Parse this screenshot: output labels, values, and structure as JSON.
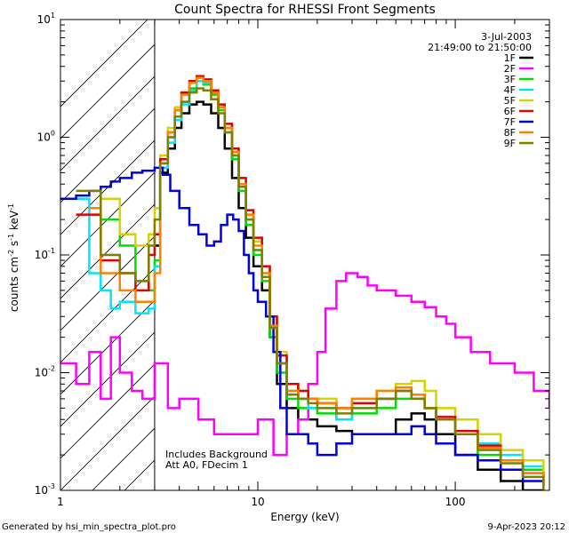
{
  "chart_data": {
    "type": "line",
    "title": "Count Spectra for RHESSI Front Segments",
    "date": "3-Jul-2003",
    "time_range": "21:49:00 to 21:50:00",
    "xlabel": "Energy (keV)",
    "ylabel_main": "counts cm",
    "ylabel_exp1": "-2",
    "ylabel_mid": " s",
    "ylabel_exp2": "-1",
    "ylabel_end": " keV",
    "ylabel_exp3": "-1",
    "xscale": "log",
    "yscale": "log",
    "xlim": [
      1,
      300
    ],
    "ylim": [
      0.001,
      10
    ],
    "x_ticks": [
      {
        "v": 1,
        "label": "1"
      },
      {
        "v": 10,
        "label": "10"
      },
      {
        "v": 100,
        "label": "100"
      }
    ],
    "y_ticks": [
      {
        "v": 0.001,
        "base": "10",
        "exp": "-3"
      },
      {
        "v": 0.01,
        "base": "10",
        "exp": "-2"
      },
      {
        "v": 0.1,
        "base": "10",
        "exp": "-1"
      },
      {
        "v": 1,
        "base": "10",
        "exp": "0"
      },
      {
        "v": 10,
        "base": "10",
        "exp": "1"
      }
    ],
    "hatched_region_x": [
      1,
      3
    ],
    "annotations": {
      "line1": "Includes Background",
      "line2": "Att A0, FDecim 1"
    },
    "footer_left": "Generated by hsi_min_spectra_plot.pro",
    "footer_right": "9-Apr-2023 20:12",
    "legend_position": "top-right",
    "series": [
      {
        "name": "1F",
        "color": "#000000",
        "x": [
          3.0,
          3.2,
          3.5,
          3.8,
          4.1,
          4.5,
          4.9,
          5.3,
          5.8,
          6.3,
          6.8,
          7.4,
          8.0,
          8.7,
          9.5,
          10.5,
          11.5,
          12.5,
          14,
          16,
          18,
          20,
          25,
          30,
          40,
          50,
          60,
          70,
          80,
          100,
          130,
          170,
          220,
          280
        ],
        "y": [
          0.12,
          0.5,
          0.8,
          1.2,
          1.6,
          1.9,
          2.0,
          1.9,
          1.6,
          1.2,
          0.8,
          0.45,
          0.25,
          0.14,
          0.08,
          0.05,
          0.02,
          0.008,
          0.005,
          0.004,
          0.004,
          0.0035,
          0.0032,
          0.003,
          0.003,
          0.004,
          0.0045,
          0.004,
          0.003,
          0.002,
          0.0015,
          0.0012,
          0.001,
          0.001
        ]
      },
      {
        "name": "2F",
        "color": "#ff00ff",
        "x": [
          1.0,
          1.2,
          1.4,
          1.6,
          1.8,
          2.0,
          2.3,
          2.6,
          3.0,
          3.5,
          4.0,
          5.0,
          6.0,
          8.0,
          10,
          12,
          14,
          16,
          18,
          20,
          22,
          25,
          28,
          32,
          36,
          40,
          50,
          60,
          70,
          80,
          90,
          100,
          120,
          150,
          200,
          250,
          300
        ],
        "y": [
          0.012,
          0.008,
          0.015,
          0.006,
          0.02,
          0.01,
          0.007,
          0.006,
          0.012,
          0.005,
          0.006,
          0.004,
          0.003,
          0.003,
          0.004,
          0.002,
          0.003,
          0.004,
          0.008,
          0.015,
          0.035,
          0.06,
          0.07,
          0.065,
          0.055,
          0.05,
          0.045,
          0.04,
          0.036,
          0.03,
          0.026,
          0.02,
          0.015,
          0.012,
          0.01,
          0.007,
          0.005
        ]
      },
      {
        "name": "3F",
        "color": "#00dd00",
        "x": [
          1.6,
          2.0,
          2.4,
          2.8,
          3.0,
          3.2,
          3.5,
          3.8,
          4.1,
          4.5,
          4.9,
          5.3,
          5.8,
          6.3,
          6.8,
          7.4,
          8.0,
          8.7,
          9.5,
          10.5,
          11.5,
          12.5,
          14,
          16,
          18,
          20,
          25,
          30,
          40,
          50,
          60,
          70,
          80,
          100,
          130,
          170,
          220,
          280
        ],
        "y": [
          0.2,
          0.12,
          0.06,
          0.05,
          0.09,
          0.6,
          1.0,
          1.5,
          2.0,
          2.6,
          3.0,
          2.8,
          2.3,
          1.7,
          1.1,
          0.65,
          0.35,
          0.18,
          0.1,
          0.06,
          0.02,
          0.01,
          0.006,
          0.005,
          0.005,
          0.0045,
          0.004,
          0.0045,
          0.005,
          0.006,
          0.006,
          0.005,
          0.004,
          0.003,
          0.002,
          0.0018,
          0.0015,
          0.0012
        ]
      },
      {
        "name": "4F",
        "color": "#00e5ff",
        "x": [
          1.2,
          1.4,
          1.6,
          1.8,
          2.0,
          2.4,
          2.8,
          3.0,
          3.2,
          3.5,
          3.8,
          4.1,
          4.5,
          4.9,
          5.3,
          5.8,
          6.3,
          6.8,
          7.4,
          8.0,
          8.7,
          9.5,
          10.5,
          11.5,
          12.5,
          14,
          16,
          18,
          20,
          25,
          30,
          40,
          50,
          60,
          70,
          80,
          100,
          130,
          170,
          220,
          280
        ],
        "y": [
          0.3,
          0.07,
          0.05,
          0.035,
          0.04,
          0.032,
          0.035,
          0.08,
          0.55,
          0.9,
          1.4,
          1.9,
          2.5,
          3.0,
          2.9,
          2.4,
          1.8,
          1.2,
          0.7,
          0.38,
          0.2,
          0.11,
          0.07,
          0.025,
          0.012,
          0.007,
          0.006,
          0.005,
          0.005,
          0.004,
          0.005,
          0.006,
          0.007,
          0.0065,
          0.005,
          0.004,
          0.003,
          0.0025,
          0.002,
          0.0016,
          0.0013
        ]
      },
      {
        "name": "5F",
        "color": "#d4d400",
        "x": [
          1.6,
          2.0,
          2.4,
          2.8,
          3.0,
          3.2,
          3.5,
          3.8,
          4.1,
          4.5,
          4.9,
          5.3,
          5.8,
          6.3,
          6.8,
          7.4,
          8.0,
          8.7,
          9.5,
          10.5,
          11.5,
          12.5,
          14,
          16,
          18,
          20,
          25,
          30,
          40,
          50,
          60,
          70,
          80,
          100,
          130,
          170,
          220,
          280
        ],
        "y": [
          0.3,
          0.15,
          0.12,
          0.15,
          0.25,
          0.7,
          1.2,
          1.8,
          2.4,
          2.9,
          3.2,
          3.0,
          2.4,
          1.8,
          1.2,
          0.75,
          0.4,
          0.22,
          0.13,
          0.08,
          0.03,
          0.015,
          0.008,
          0.007,
          0.006,
          0.006,
          0.005,
          0.006,
          0.007,
          0.008,
          0.0085,
          0.007,
          0.005,
          0.004,
          0.003,
          0.0022,
          0.0018,
          0.0014
        ]
      },
      {
        "name": "6F",
        "color": "#dd0000",
        "x": [
          1.2,
          1.6,
          2.0,
          2.4,
          2.8,
          3.0,
          3.2,
          3.5,
          3.8,
          4.1,
          4.5,
          4.9,
          5.3,
          5.8,
          6.3,
          6.8,
          7.4,
          8.0,
          8.7,
          9.5,
          10.5,
          11.5,
          12.5,
          14,
          16,
          18,
          20,
          25,
          30,
          40,
          50,
          60,
          70,
          80,
          100,
          130,
          170,
          220,
          280
        ],
        "y": [
          0.22,
          0.09,
          0.07,
          0.05,
          0.1,
          0.15,
          0.65,
          1.1,
          1.7,
          2.4,
          3.0,
          3.3,
          3.1,
          2.5,
          1.9,
          1.3,
          0.8,
          0.45,
          0.24,
          0.14,
          0.08,
          0.03,
          0.014,
          0.008,
          0.007,
          0.006,
          0.0055,
          0.005,
          0.0055,
          0.006,
          0.007,
          0.0065,
          0.005,
          0.0042,
          0.0032,
          0.0024,
          0.0018,
          0.0014,
          0.0011
        ]
      },
      {
        "name": "7F",
        "color": "#0000dd",
        "x": [
          1.0,
          1.2,
          1.4,
          1.6,
          1.8,
          2.0,
          2.3,
          2.6,
          3.0,
          3.3,
          3.6,
          4.0,
          4.5,
          5.0,
          5.5,
          6.0,
          6.5,
          7.0,
          7.5,
          8.0,
          8.5,
          9.0,
          9.5,
          10,
          11,
          12,
          13,
          14,
          16,
          18,
          20,
          25,
          30,
          40,
          50,
          60,
          70,
          80,
          100,
          130,
          170,
          220,
          280
        ],
        "y": [
          0.3,
          0.32,
          0.35,
          0.38,
          0.42,
          0.45,
          0.5,
          0.52,
          0.55,
          0.48,
          0.35,
          0.25,
          0.18,
          0.15,
          0.12,
          0.13,
          0.18,
          0.22,
          0.2,
          0.16,
          0.1,
          0.07,
          0.05,
          0.04,
          0.03,
          0.015,
          0.005,
          0.003,
          0.003,
          0.0025,
          0.002,
          0.0025,
          0.003,
          0.003,
          0.003,
          0.0035,
          0.003,
          0.0025,
          0.002,
          0.0018,
          0.0015,
          0.0012,
          0.001
        ]
      },
      {
        "name": "8F",
        "color": "#ff8000",
        "x": [
          1.4,
          1.6,
          2.0,
          2.4,
          2.8,
          3.0,
          3.2,
          3.5,
          3.8,
          4.1,
          4.5,
          4.9,
          5.3,
          5.8,
          6.3,
          6.8,
          7.4,
          8.0,
          8.7,
          9.5,
          10.5,
          11.5,
          12.5,
          14,
          16,
          18,
          20,
          25,
          30,
          40,
          50,
          60,
          70,
          80,
          100,
          130,
          170,
          220,
          280
        ],
        "y": [
          0.25,
          0.07,
          0.05,
          0.04,
          0.04,
          0.07,
          0.6,
          1.1,
          1.7,
          2.3,
          2.9,
          3.2,
          3.0,
          2.4,
          1.8,
          1.2,
          0.75,
          0.4,
          0.22,
          0.12,
          0.07,
          0.025,
          0.012,
          0.007,
          0.006,
          0.006,
          0.0055,
          0.005,
          0.006,
          0.007,
          0.0075,
          0.0065,
          0.005,
          0.004,
          0.003,
          0.0023,
          0.0018,
          0.0014,
          0.0011
        ]
      },
      {
        "name": "9F",
        "color": "#808000",
        "x": [
          1.2,
          1.6,
          2.0,
          2.4,
          2.8,
          3.0,
          3.2,
          3.5,
          3.8,
          4.1,
          4.5,
          4.9,
          5.3,
          5.8,
          6.3,
          6.8,
          7.4,
          8.0,
          8.7,
          9.5,
          10.5,
          11.5,
          12.5,
          14,
          16,
          18,
          20,
          25,
          30,
          40,
          50,
          60,
          70,
          80,
          100,
          130,
          170,
          220,
          280
        ],
        "y": [
          0.35,
          0.1,
          0.07,
          0.06,
          0.12,
          0.2,
          0.6,
          1.0,
          1.5,
          2.0,
          2.4,
          2.6,
          2.5,
          2.1,
          1.6,
          1.1,
          0.7,
          0.38,
          0.2,
          0.11,
          0.065,
          0.024,
          0.012,
          0.0065,
          0.006,
          0.0055,
          0.005,
          0.0045,
          0.005,
          0.006,
          0.007,
          0.006,
          0.005,
          0.004,
          0.003,
          0.0022,
          0.0017,
          0.0013,
          0.001
        ]
      }
    ]
  }
}
